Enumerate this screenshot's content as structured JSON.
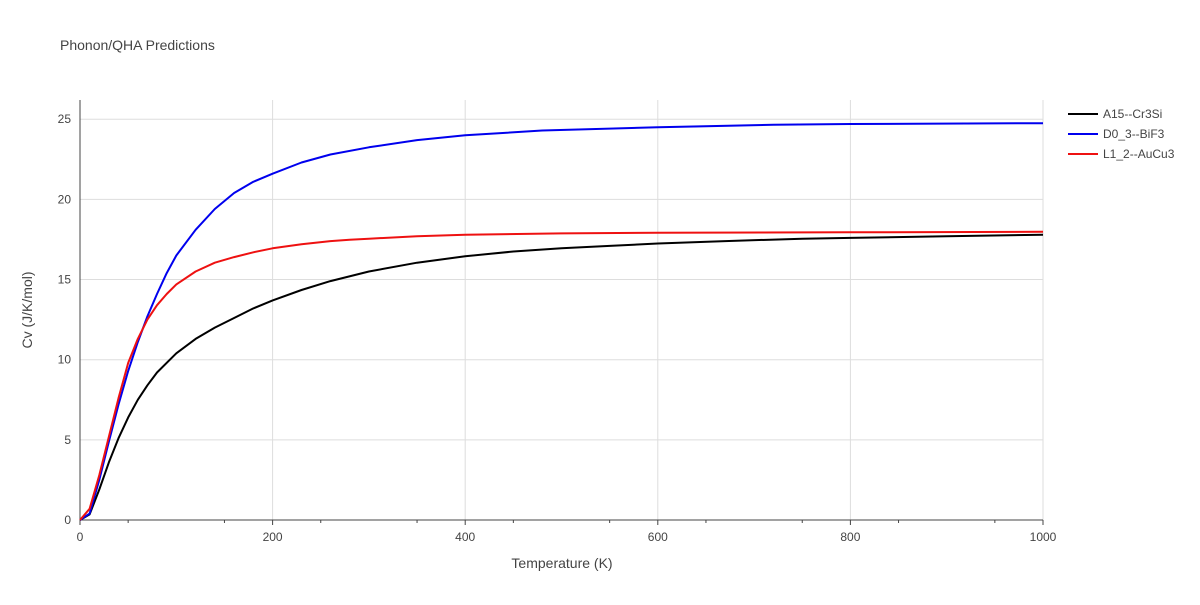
{
  "chart_data": {
    "type": "line",
    "title": "Phonon/QHA Predictions",
    "xlabel": "Temperature (K)",
    "ylabel": "Cv (J/K/mol)",
    "xlim": [
      0,
      1000
    ],
    "ylim": [
      0,
      26.2
    ],
    "xticks": [
      0,
      200,
      400,
      600,
      800,
      1000
    ],
    "yticks": [
      0,
      5,
      10,
      15,
      20,
      25
    ],
    "grid": true,
    "legend_position": "top-right",
    "series": [
      {
        "name": "A15--Cr3Si",
        "color": "#000000",
        "x": [
          0,
          10,
          20,
          30,
          40,
          50,
          60,
          70,
          80,
          100,
          120,
          140,
          160,
          180,
          200,
          230,
          260,
          300,
          350,
          400,
          450,
          500,
          550,
          600,
          670,
          750,
          800,
          900,
          1000
        ],
        "y": [
          0,
          0.35,
          1.9,
          3.6,
          5.1,
          6.4,
          7.5,
          8.4,
          9.2,
          10.4,
          11.3,
          12.0,
          12.6,
          13.2,
          13.7,
          14.35,
          14.9,
          15.5,
          16.05,
          16.45,
          16.75,
          16.95,
          17.1,
          17.25,
          17.4,
          17.55,
          17.6,
          17.7,
          17.8
        ]
      },
      {
        "name": "D0_3--BiF3",
        "color": "#0000ee",
        "x": [
          0,
          10,
          20,
          30,
          40,
          50,
          60,
          70,
          80,
          90,
          100,
          120,
          140,
          160,
          180,
          200,
          230,
          260,
          300,
          350,
          400,
          480,
          600,
          720,
          800,
          1000
        ],
        "y": [
          0,
          0.4,
          2.5,
          4.9,
          7.2,
          9.3,
          11.1,
          12.7,
          14.1,
          15.4,
          16.5,
          18.1,
          19.4,
          20.4,
          21.1,
          21.6,
          22.3,
          22.8,
          23.25,
          23.7,
          24.0,
          24.3,
          24.5,
          24.65,
          24.7,
          24.75
        ]
      },
      {
        "name": "L1_2--AuCu3",
        "color": "#ee1111",
        "x": [
          0,
          10,
          20,
          30,
          40,
          50,
          60,
          70,
          80,
          90,
          100,
          120,
          140,
          160,
          180,
          200,
          230,
          260,
          280,
          300,
          350,
          400,
          500,
          600,
          800,
          1000
        ],
        "y": [
          0,
          0.7,
          2.8,
          5.2,
          7.6,
          9.8,
          11.3,
          12.5,
          13.4,
          14.1,
          14.7,
          15.5,
          16.05,
          16.4,
          16.7,
          16.95,
          17.2,
          17.4,
          17.48,
          17.55,
          17.7,
          17.8,
          17.88,
          17.92,
          17.95,
          17.98
        ]
      }
    ]
  }
}
